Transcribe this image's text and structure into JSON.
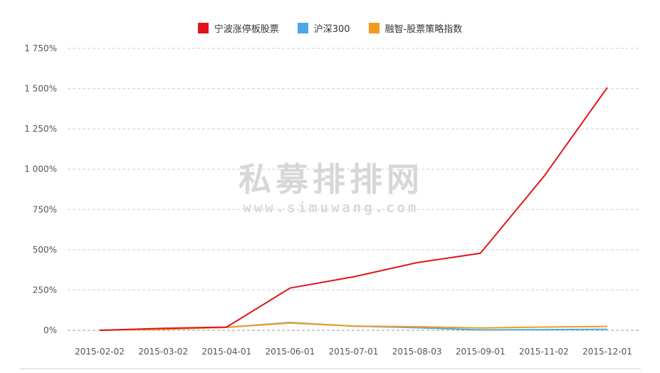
{
  "chart_data": {
    "type": "line",
    "title": "",
    "xlabel": "",
    "ylabel": "",
    "categories": [
      "2015-02-02",
      "2015-03-02",
      "2015-04-01",
      "2015-06-01",
      "2015-07-01",
      "2015-08-03",
      "2015-09-01",
      "2015-11-02",
      "2015-12-01"
    ],
    "x_positions": [
      0,
      1,
      2,
      3,
      4,
      5,
      6,
      7,
      8
    ],
    "ylim": [
      0,
      1750
    ],
    "yticks": [
      0,
      250,
      500,
      750,
      1000,
      1250,
      1500,
      1750
    ],
    "ytick_labels": [
      "0%",
      "250%",
      "500%",
      "750%",
      "1 000%",
      "1 250%",
      "1 500%",
      "1 750%"
    ],
    "grid": true,
    "legend_position": "top-center",
    "series": [
      {
        "name": "宁波涨停板股票",
        "color": "#e1141c",
        "values": [
          0,
          12,
          20,
          262,
          332,
          420,
          478,
          955,
          1507
        ]
      },
      {
        "name": "沪深300",
        "color": "#4aa9e4",
        "values": [
          0,
          8,
          18,
          48,
          26,
          16,
          2,
          4,
          6
        ]
      },
      {
        "name": "融智-股票策略指数",
        "color": "#f29a1e",
        "values": [
          0,
          6,
          18,
          45,
          26,
          22,
          14,
          20,
          24
        ]
      }
    ]
  },
  "watermark": {
    "line1": "私募排排网",
    "line2": "www.simuwang.com"
  }
}
